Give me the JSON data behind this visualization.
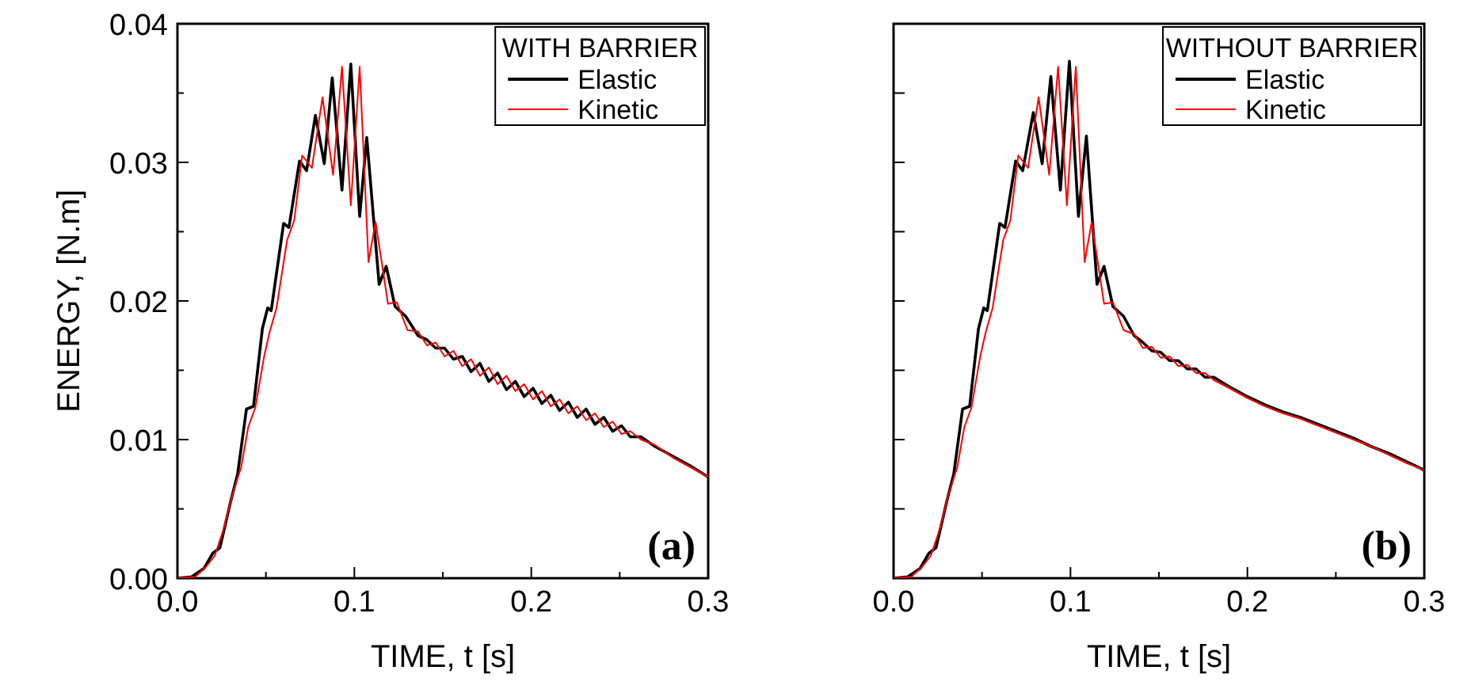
{
  "chart_data": [
    {
      "type": "line",
      "xlabel": "TIME, t [s]",
      "ylabel": "ENERGY, [N.m]",
      "legend_title": "WITH BARRIER",
      "legend": "top right",
      "annotations": [
        "(a)"
      ],
      "xlim": [
        0,
        0.3
      ],
      "ylim": [
        0,
        0.04
      ],
      "xticks": [
        {
          "value": 0,
          "label": "0.0"
        },
        {
          "value": 0.05,
          "label": null
        },
        {
          "value": 0.1,
          "label": "0.1"
        },
        {
          "value": 0.15,
          "label": null
        },
        {
          "value": 0.2,
          "label": "0.2"
        },
        {
          "value": 0.25,
          "label": null
        },
        {
          "value": 0.3,
          "label": "0.3"
        }
      ],
      "yticks": [
        {
          "value": 0,
          "label": "0.00"
        },
        {
          "value": 0.005,
          "label": null
        },
        {
          "value": 0.01,
          "label": "0.01"
        },
        {
          "value": 0.015,
          "label": null
        },
        {
          "value": 0.02,
          "label": "0.02"
        },
        {
          "value": 0.025,
          "label": null
        },
        {
          "value": 0.03,
          "label": "0.03"
        },
        {
          "value": 0.035,
          "label": null
        },
        {
          "value": 0.04,
          "label": "0.04"
        }
      ],
      "series": [
        {
          "name": "Elastic",
          "color": "#000000",
          "x": [
            0,
            0.008,
            0.015,
            0.02,
            0.024,
            0.03,
            0.034,
            0.039,
            0.043,
            0.048,
            0.051,
            0.053,
            0.06,
            0.063,
            0.069,
            0.073,
            0.078,
            0.083,
            0.0875,
            0.093,
            0.098,
            0.103,
            0.107,
            0.114,
            0.118,
            0.123,
            0.129,
            0.136,
            0.141,
            0.146,
            0.151,
            0.156,
            0.161,
            0.166,
            0.171,
            0.176,
            0.181,
            0.186,
            0.191,
            0.196,
            0.201,
            0.206,
            0.211,
            0.216,
            0.221,
            0.226,
            0.231,
            0.236,
            0.241,
            0.246,
            0.251,
            0.256,
            0.262,
            0.27,
            0.28,
            0.29,
            0.3
          ],
          "values": [
            0,
            0.0001,
            0.0007,
            0.0018,
            0.0022,
            0.0055,
            0.0075,
            0.0122,
            0.0124,
            0.018,
            0.0195,
            0.0193,
            0.0256,
            0.0253,
            0.0301,
            0.0294,
            0.0334,
            0.0299,
            0.0361,
            0.028,
            0.0371,
            0.0261,
            0.0318,
            0.0212,
            0.0225,
            0.0196,
            0.0189,
            0.0175,
            0.0172,
            0.0166,
            0.0166,
            0.0158,
            0.016,
            0.0149,
            0.0155,
            0.0142,
            0.0148,
            0.0136,
            0.0142,
            0.0131,
            0.0137,
            0.0126,
            0.0132,
            0.0121,
            0.0127,
            0.0116,
            0.0122,
            0.0111,
            0.0116,
            0.0106,
            0.011,
            0.0102,
            0.0102,
            0.0095,
            0.0088,
            0.0081,
            0.0073
          ]
        },
        {
          "name": "Kinetic",
          "color": "#ff0000",
          "x": [
            0,
            0.01,
            0.016,
            0.021,
            0.026,
            0.031,
            0.036,
            0.04,
            0.044,
            0.049,
            0.052,
            0.056,
            0.062,
            0.066,
            0.0705,
            0.076,
            0.082,
            0.088,
            0.093,
            0.098,
            0.103,
            0.108,
            0.112,
            0.119,
            0.124,
            0.13,
            0.136,
            0.141,
            0.146,
            0.151,
            0.156,
            0.161,
            0.166,
            0.171,
            0.176,
            0.181,
            0.186,
            0.191,
            0.196,
            0.201,
            0.206,
            0.211,
            0.216,
            0.221,
            0.226,
            0.231,
            0.236,
            0.241,
            0.246,
            0.251,
            0.256,
            0.262,
            0.27,
            0.28,
            0.29,
            0.3
          ],
          "values": [
            0,
            0.0001,
            0.0008,
            0.0016,
            0.0035,
            0.006,
            0.008,
            0.0109,
            0.0123,
            0.016,
            0.0177,
            0.0195,
            0.0244,
            0.0258,
            0.0305,
            0.0296,
            0.0347,
            0.0291,
            0.0369,
            0.0269,
            0.0369,
            0.0228,
            0.0257,
            0.0198,
            0.0199,
            0.0179,
            0.0178,
            0.0168,
            0.017,
            0.016,
            0.0164,
            0.0153,
            0.0158,
            0.0146,
            0.0152,
            0.014,
            0.0146,
            0.0135,
            0.014,
            0.0129,
            0.0135,
            0.0124,
            0.0129,
            0.0119,
            0.0124,
            0.0114,
            0.0119,
            0.0109,
            0.0113,
            0.0104,
            0.0106,
            0.01,
            0.0096,
            0.0087,
            0.008,
            0.0073
          ]
        }
      ]
    },
    {
      "type": "line",
      "xlabel": "TIME, t [s]",
      "legend_title": "WITHOUT BARRIER",
      "legend": "top right",
      "annotations": [
        "(b)"
      ],
      "tick_labels": "x",
      "xlim": [
        0,
        0.3
      ],
      "ylim": [
        0,
        0.04
      ],
      "xticks": [
        {
          "value": 0,
          "label": "0.0"
        },
        {
          "value": 0.05,
          "label": null
        },
        {
          "value": 0.1,
          "label": "0.1"
        },
        {
          "value": 0.15,
          "label": null
        },
        {
          "value": 0.2,
          "label": "0.2"
        },
        {
          "value": 0.25,
          "label": null
        },
        {
          "value": 0.3,
          "label": "0.3"
        }
      ],
      "yticks": [
        {
          "value": 0,
          "label": null
        },
        {
          "value": 0.005,
          "label": null
        },
        {
          "value": 0.01,
          "label": null
        },
        {
          "value": 0.015,
          "label": null
        },
        {
          "value": 0.02,
          "label": null
        },
        {
          "value": 0.025,
          "label": null
        },
        {
          "value": 0.03,
          "label": null
        },
        {
          "value": 0.035,
          "label": null
        },
        {
          "value": 0.04,
          "label": null
        }
      ],
      "series": [
        {
          "name": "Elastic",
          "color": "#000000",
          "x": [
            0,
            0.008,
            0.015,
            0.02,
            0.024,
            0.03,
            0.034,
            0.039,
            0.043,
            0.048,
            0.051,
            0.053,
            0.06,
            0.063,
            0.069,
            0.073,
            0.079,
            0.084,
            0.0889,
            0.0943,
            0.0994,
            0.1045,
            0.109,
            0.115,
            0.119,
            0.124,
            0.13,
            0.136,
            0.141,
            0.146,
            0.151,
            0.156,
            0.161,
            0.166,
            0.171,
            0.176,
            0.181,
            0.19,
            0.2,
            0.21,
            0.22,
            0.23,
            0.24,
            0.25,
            0.26,
            0.27,
            0.28,
            0.29,
            0.3
          ],
          "values": [
            0,
            0.0001,
            0.0007,
            0.0018,
            0.0022,
            0.0055,
            0.0075,
            0.0122,
            0.0124,
            0.018,
            0.0195,
            0.0193,
            0.0256,
            0.0253,
            0.0301,
            0.0294,
            0.0336,
            0.0299,
            0.0362,
            0.028,
            0.0373,
            0.0261,
            0.0319,
            0.0212,
            0.0225,
            0.0196,
            0.0189,
            0.0175,
            0.017,
            0.0164,
            0.0163,
            0.0157,
            0.0157,
            0.0151,
            0.0151,
            0.0145,
            0.0145,
            0.0138,
            0.0131,
            0.0125,
            0.012,
            0.0116,
            0.0111,
            0.0106,
            0.0101,
            0.0095,
            0.009,
            0.0084,
            0.0078
          ]
        },
        {
          "name": "Kinetic",
          "color": "#ff0000",
          "x": [
            0,
            0.01,
            0.016,
            0.021,
            0.026,
            0.031,
            0.036,
            0.04,
            0.044,
            0.049,
            0.052,
            0.056,
            0.062,
            0.066,
            0.0705,
            0.076,
            0.082,
            0.088,
            0.093,
            0.098,
            0.103,
            0.108,
            0.112,
            0.119,
            0.124,
            0.13,
            0.136,
            0.141,
            0.146,
            0.151,
            0.156,
            0.161,
            0.166,
            0.171,
            0.176,
            0.181,
            0.19,
            0.2,
            0.21,
            0.22,
            0.23,
            0.24,
            0.25,
            0.26,
            0.27,
            0.28,
            0.29,
            0.3
          ],
          "values": [
            0,
            0.0001,
            0.0008,
            0.0016,
            0.0035,
            0.006,
            0.008,
            0.0109,
            0.0123,
            0.016,
            0.0177,
            0.0195,
            0.0244,
            0.0258,
            0.0305,
            0.0296,
            0.0347,
            0.0291,
            0.0369,
            0.0269,
            0.0369,
            0.0228,
            0.0257,
            0.0198,
            0.0199,
            0.0179,
            0.0176,
            0.0166,
            0.0167,
            0.0159,
            0.016,
            0.0153,
            0.0154,
            0.0148,
            0.0148,
            0.0143,
            0.0137,
            0.013,
            0.0124,
            0.0119,
            0.0115,
            0.011,
            0.0105,
            0.01,
            0.0095,
            0.0089,
            0.0083,
            0.0078
          ]
        }
      ]
    }
  ]
}
